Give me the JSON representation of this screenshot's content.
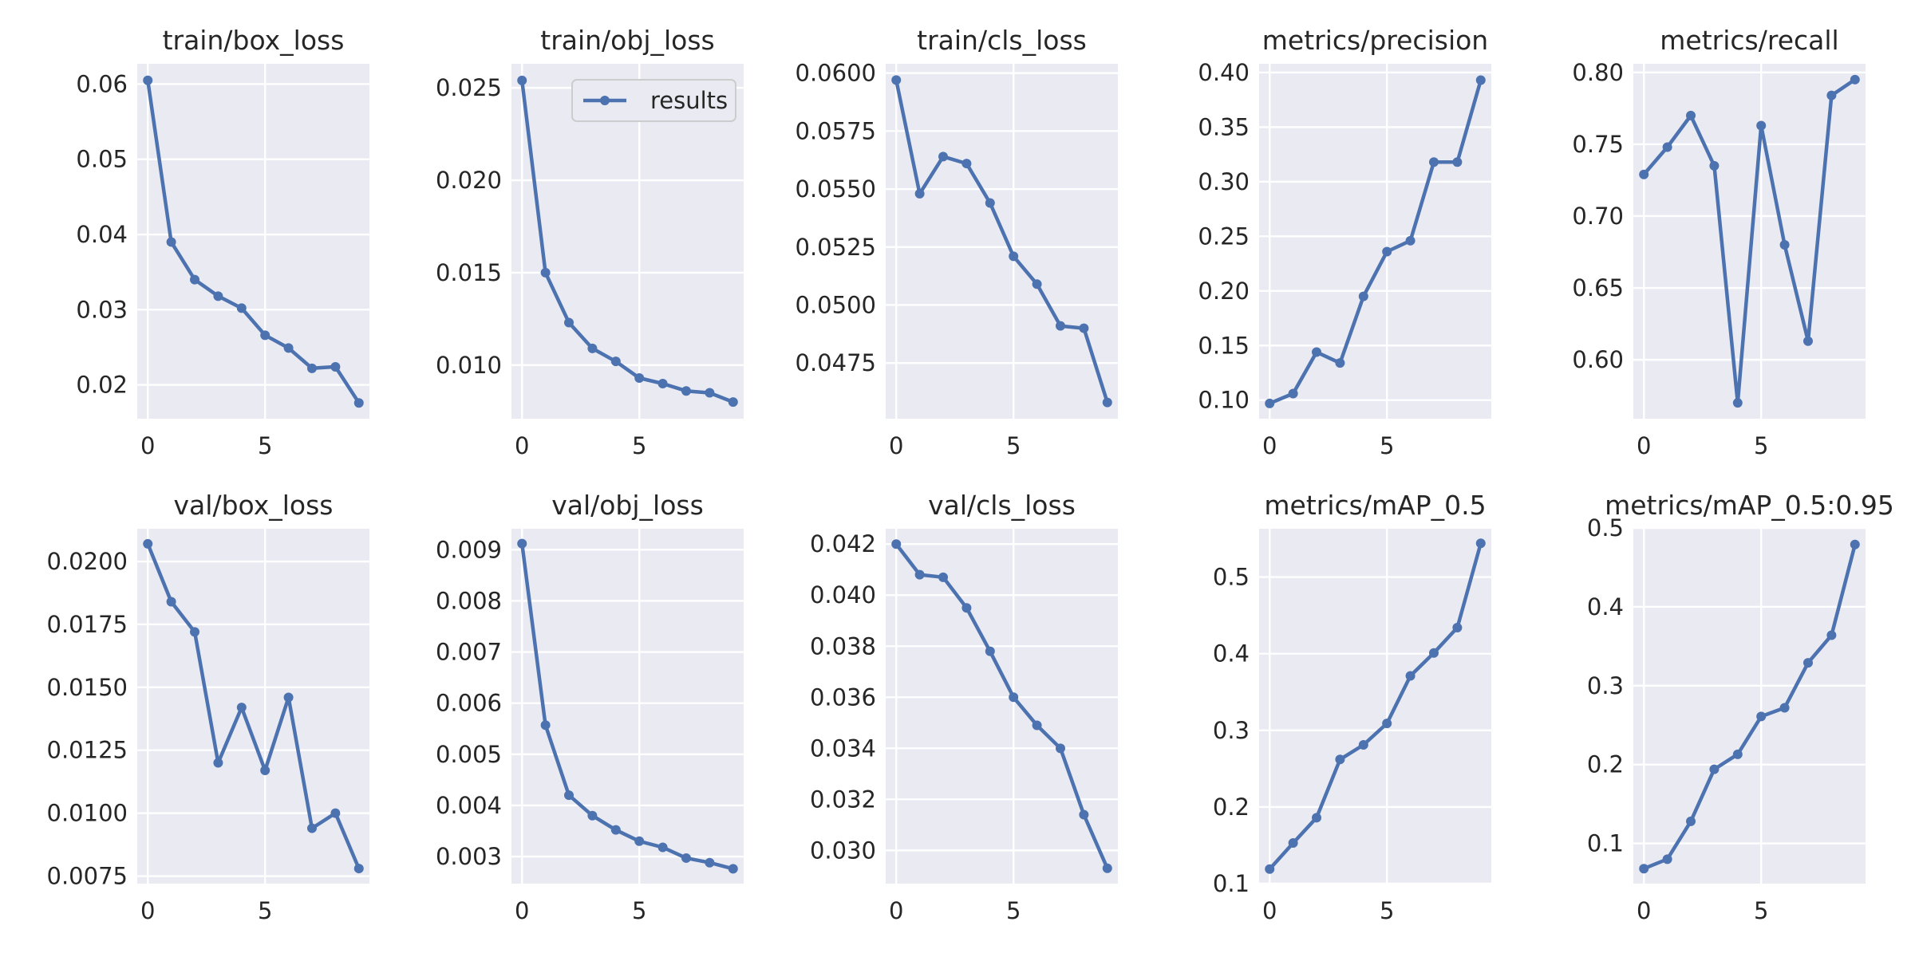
{
  "figure": {
    "legend_label": "results",
    "line_color": "#4c72b0",
    "plot_bg": "#eaeaf2",
    "grid_color": "#ffffff"
  },
  "chart_data": [
    {
      "type": "line",
      "title": "train/box_loss",
      "x": [
        0,
        1,
        2,
        3,
        4,
        5,
        6,
        7,
        8,
        9
      ],
      "values": [
        0.0605,
        0.039,
        0.034,
        0.0318,
        0.0302,
        0.0266,
        0.0249,
        0.0222,
        0.0224,
        0.0176
      ],
      "xlim": [
        -0.45,
        9.45
      ],
      "ylim": [
        0.0155,
        0.0627
      ],
      "xticks": [
        0,
        5
      ],
      "xtick_labels": [
        "0",
        "5"
      ],
      "yticks": [
        0.02,
        0.03,
        0.04,
        0.05,
        0.06
      ],
      "ytick_labels": [
        "0.02",
        "0.03",
        "0.04",
        "0.05",
        "0.06"
      ],
      "legend": false
    },
    {
      "type": "line",
      "title": "train/obj_loss",
      "x": [
        0,
        1,
        2,
        3,
        4,
        5,
        6,
        7,
        8,
        9
      ],
      "values": [
        0.0254,
        0.015,
        0.0123,
        0.0109,
        0.0102,
        0.0093,
        0.009,
        0.0086,
        0.0085,
        0.008
      ],
      "xlim": [
        -0.45,
        9.45
      ],
      "ylim": [
        0.0071,
        0.0263
      ],
      "xticks": [
        0,
        5
      ],
      "xtick_labels": [
        "0",
        "5"
      ],
      "yticks": [
        0.01,
        0.015,
        0.02,
        0.025
      ],
      "ytick_labels": [
        "0.010",
        "0.015",
        "0.020",
        "0.025"
      ],
      "legend": true
    },
    {
      "type": "line",
      "title": "train/cls_loss",
      "x": [
        0,
        1,
        2,
        3,
        4,
        5,
        6,
        7,
        8,
        9
      ],
      "values": [
        0.0597,
        0.0548,
        0.0564,
        0.0561,
        0.0544,
        0.0521,
        0.0509,
        0.0491,
        0.049,
        0.0458
      ],
      "xlim": [
        -0.45,
        9.45
      ],
      "ylim": [
        0.0451,
        0.0604
      ],
      "xticks": [
        0,
        5
      ],
      "xtick_labels": [
        "0",
        "5"
      ],
      "yticks": [
        0.0475,
        0.05,
        0.0525,
        0.055,
        0.0575,
        0.06
      ],
      "ytick_labels": [
        "0.0475",
        "0.0500",
        "0.0525",
        "0.0550",
        "0.0575",
        "0.0600"
      ],
      "legend": false
    },
    {
      "type": "line",
      "title": "metrics/precision",
      "x": [
        0,
        1,
        2,
        3,
        4,
        5,
        6,
        7,
        8,
        9
      ],
      "values": [
        0.097,
        0.106,
        0.144,
        0.134,
        0.195,
        0.236,
        0.246,
        0.318,
        0.318,
        0.393
      ],
      "xlim": [
        -0.45,
        9.45
      ],
      "ylim": [
        0.083,
        0.408
      ],
      "xticks": [
        0,
        5
      ],
      "xtick_labels": [
        "0",
        "5"
      ],
      "yticks": [
        0.1,
        0.15,
        0.2,
        0.25,
        0.3,
        0.35,
        0.4
      ],
      "ytick_labels": [
        "0.10",
        "0.15",
        "0.20",
        "0.25",
        "0.30",
        "0.35",
        "0.40"
      ],
      "legend": false
    },
    {
      "type": "line",
      "title": "metrics/recall",
      "x": [
        0,
        1,
        2,
        3,
        4,
        5,
        6,
        7,
        8,
        9
      ],
      "values": [
        0.729,
        0.748,
        0.77,
        0.735,
        0.57,
        0.763,
        0.68,
        0.613,
        0.784,
        0.795
      ],
      "xlim": [
        -0.45,
        9.45
      ],
      "ylim": [
        0.559,
        0.806
      ],
      "xticks": [
        0,
        5
      ],
      "xtick_labels": [
        "0",
        "5"
      ],
      "yticks": [
        0.6,
        0.65,
        0.7,
        0.75,
        0.8
      ],
      "ytick_labels": [
        "0.60",
        "0.65",
        "0.70",
        "0.75",
        "0.80"
      ],
      "legend": false
    },
    {
      "type": "line",
      "title": "val/box_loss",
      "x": [
        0,
        1,
        2,
        3,
        4,
        5,
        6,
        7,
        8,
        9
      ],
      "values": [
        0.0207,
        0.0184,
        0.0172,
        0.012,
        0.0142,
        0.0117,
        0.0146,
        0.0094,
        0.01,
        0.0078
      ],
      "xlim": [
        -0.45,
        9.45
      ],
      "ylim": [
        0.0072,
        0.0213
      ],
      "xticks": [
        0,
        5
      ],
      "xtick_labels": [
        "0",
        "5"
      ],
      "yticks": [
        0.0075,
        0.01,
        0.0125,
        0.015,
        0.0175,
        0.02
      ],
      "ytick_labels": [
        "0.0075",
        "0.0100",
        "0.0125",
        "0.0150",
        "0.0175",
        "0.0200"
      ],
      "legend": false
    },
    {
      "type": "line",
      "title": "val/obj_loss",
      "x": [
        0,
        1,
        2,
        3,
        4,
        5,
        6,
        7,
        8,
        9
      ],
      "values": [
        0.00912,
        0.00557,
        0.0042,
        0.0038,
        0.00352,
        0.0033,
        0.00318,
        0.00297,
        0.00288,
        0.00276
      ],
      "xlim": [
        -0.45,
        9.45
      ],
      "ylim": [
        0.00247,
        0.00941
      ],
      "xticks": [
        0,
        5
      ],
      "xtick_labels": [
        "0",
        "5"
      ],
      "yticks": [
        0.003,
        0.004,
        0.005,
        0.006,
        0.007,
        0.008,
        0.009
      ],
      "ytick_labels": [
        "0.003",
        "0.004",
        "0.005",
        "0.006",
        "0.007",
        "0.008",
        "0.009"
      ],
      "legend": false
    },
    {
      "type": "line",
      "title": "val/cls_loss",
      "x": [
        0,
        1,
        2,
        3,
        4,
        5,
        6,
        7,
        8,
        9
      ],
      "values": [
        0.042,
        0.0408,
        0.0407,
        0.0395,
        0.0378,
        0.036,
        0.0349,
        0.034,
        0.0314,
        0.0293
      ],
      "xlim": [
        -0.45,
        9.45
      ],
      "ylim": [
        0.0287,
        0.0426
      ],
      "xticks": [
        0,
        5
      ],
      "xtick_labels": [
        "0",
        "5"
      ],
      "yticks": [
        0.03,
        0.032,
        0.034,
        0.036,
        0.038,
        0.04,
        0.042
      ],
      "ytick_labels": [
        "0.030",
        "0.032",
        "0.034",
        "0.036",
        "0.038",
        "0.040",
        "0.042"
      ],
      "legend": false
    },
    {
      "type": "line",
      "title": "metrics/mAP_0.5",
      "x": [
        0,
        1,
        2,
        3,
        4,
        5,
        6,
        7,
        8,
        9
      ],
      "values": [
        0.119,
        0.153,
        0.186,
        0.262,
        0.281,
        0.309,
        0.371,
        0.401,
        0.434,
        0.544
      ],
      "xlim": [
        -0.45,
        9.45
      ],
      "ylim": [
        0.1,
        0.563
      ],
      "xticks": [
        0,
        5
      ],
      "xtick_labels": [
        "0",
        "5"
      ],
      "yticks": [
        0.1,
        0.2,
        0.3,
        0.4,
        0.5
      ],
      "ytick_labels": [
        "0.1",
        "0.2",
        "0.3",
        "0.4",
        "0.5"
      ],
      "legend": false
    },
    {
      "type": "line",
      "title": "metrics/mAP_0.5:0.95",
      "x": [
        0,
        1,
        2,
        3,
        4,
        5,
        6,
        7,
        8,
        9
      ],
      "values": [
        0.068,
        0.08,
        0.128,
        0.194,
        0.213,
        0.261,
        0.272,
        0.329,
        0.364,
        0.479
      ],
      "xlim": [
        -0.45,
        9.45
      ],
      "ylim": [
        0.049,
        0.499
      ],
      "xticks": [
        0,
        5
      ],
      "xtick_labels": [
        "0",
        "5"
      ],
      "yticks": [
        0.1,
        0.2,
        0.3,
        0.4,
        0.5
      ],
      "ytick_labels": [
        "0.1",
        "0.2",
        "0.3",
        "0.4",
        "0.5"
      ],
      "legend": false
    }
  ]
}
